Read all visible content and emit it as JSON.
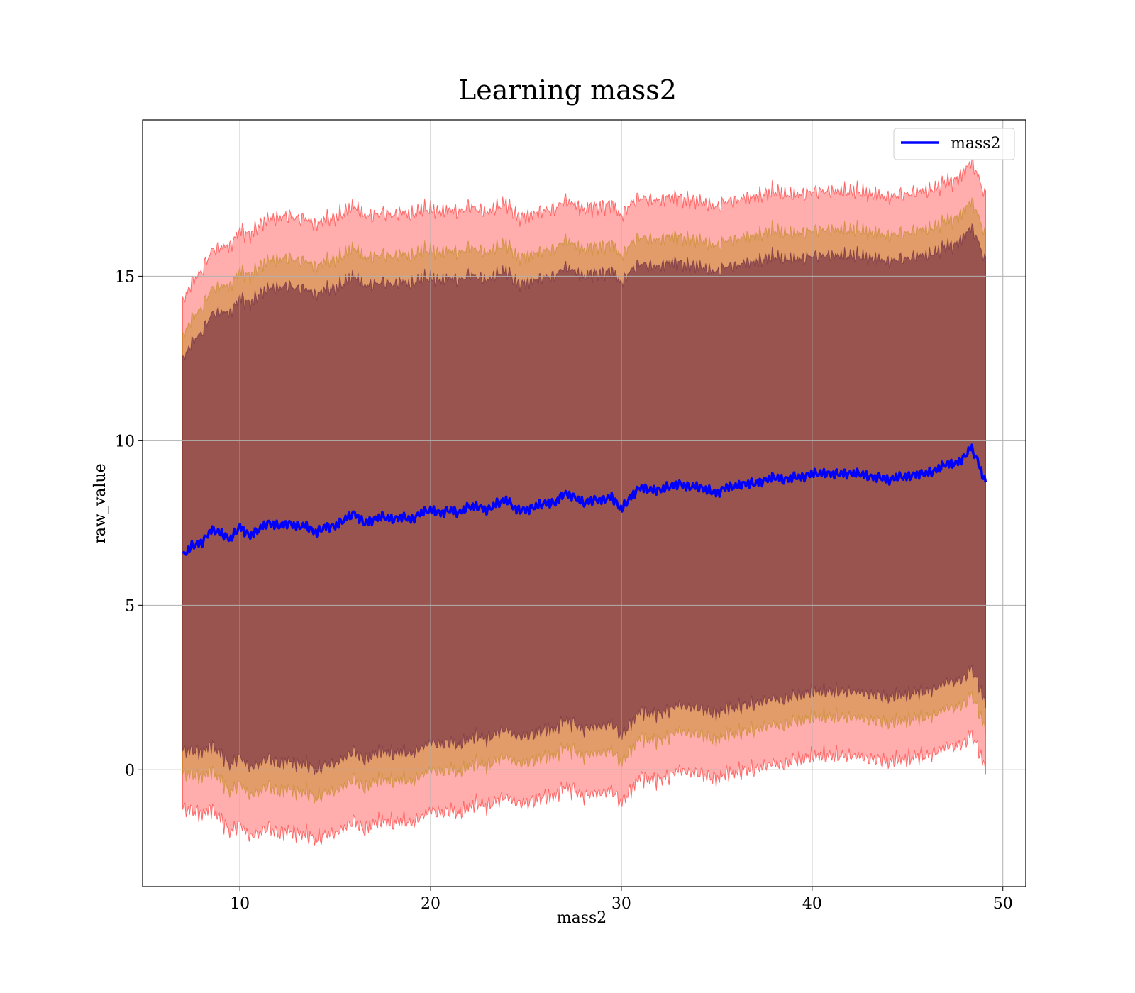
{
  "chart_data": {
    "type": "line",
    "title": "Learning mass2",
    "xlabel": "mass2",
    "ylabel": "raw_value",
    "xlim": [
      4.9,
      51.2
    ],
    "ylim": [
      -3.55,
      19.75
    ],
    "xticks": [
      10,
      20,
      30,
      40,
      50
    ],
    "yticks": [
      0,
      5,
      10,
      15
    ],
    "grid": true,
    "legend": {
      "placement": "upper right",
      "entries": [
        "mass2"
      ]
    },
    "colors": {
      "mean_line": "#0000ff",
      "band_outer": "#ff0000",
      "band_middle": "#b8860b",
      "band_inner": "#5e1a3a",
      "grid": "#b0b0b0"
    },
    "series": [
      {
        "name": "mass2",
        "x": [
          7.0,
          7.5,
          8.0,
          8.5,
          9.0,
          9.5,
          10.0,
          10.5,
          11.0,
          11.5,
          12.0,
          12.5,
          13.0,
          13.5,
          14.0,
          14.5,
          15.0,
          15.5,
          16.0,
          16.5,
          17.0,
          17.5,
          18.0,
          18.5,
          19.0,
          19.5,
          20.0,
          20.5,
          21.0,
          21.5,
          22.0,
          22.5,
          23.0,
          23.5,
          24.0,
          24.5,
          25.0,
          25.5,
          26.0,
          26.5,
          27.0,
          27.5,
          28.0,
          28.5,
          29.0,
          29.5,
          30.0,
          30.5,
          31.0,
          31.5,
          32.0,
          32.5,
          33.0,
          33.5,
          34.0,
          34.5,
          35.0,
          35.5,
          36.0,
          36.5,
          37.0,
          37.5,
          38.0,
          38.5,
          39.0,
          39.5,
          40.0,
          40.5,
          41.0,
          41.5,
          42.0,
          42.5,
          43.0,
          43.5,
          44.0,
          44.5,
          45.0,
          45.5,
          46.0,
          46.5,
          47.0,
          47.5,
          48.0,
          48.3,
          48.6,
          49.1
        ],
        "y": [
          6.5,
          6.8,
          6.9,
          7.3,
          7.2,
          7.0,
          7.4,
          7.1,
          7.3,
          7.5,
          7.4,
          7.5,
          7.4,
          7.4,
          7.2,
          7.4,
          7.4,
          7.6,
          7.8,
          7.5,
          7.6,
          7.7,
          7.6,
          7.7,
          7.6,
          7.8,
          7.9,
          7.8,
          7.9,
          7.8,
          8.0,
          8.0,
          7.9,
          8.1,
          8.2,
          7.9,
          7.9,
          8.0,
          8.1,
          8.1,
          8.4,
          8.3,
          8.1,
          8.2,
          8.2,
          8.3,
          7.9,
          8.3,
          8.6,
          8.5,
          8.5,
          8.6,
          8.7,
          8.6,
          8.6,
          8.5,
          8.4,
          8.6,
          8.6,
          8.7,
          8.7,
          8.8,
          8.9,
          8.8,
          8.9,
          8.9,
          9.0,
          9.0,
          9.0,
          9.0,
          9.0,
          9.0,
          8.9,
          8.9,
          8.8,
          8.9,
          8.9,
          9.0,
          9.0,
          9.1,
          9.3,
          9.3,
          9.5,
          9.8,
          9.5,
          8.7
        ]
      }
    ],
    "bands": {
      "x_start": 7.0,
      "x_end": 49.1,
      "sigma": [
        7.0,
        7.3,
        7.5,
        7.7,
        7.9,
        8.1,
        8.2,
        8.3,
        8.4,
        8.4,
        8.5,
        8.5,
        8.5,
        8.5,
        8.5,
        8.5,
        8.5,
        8.5,
        8.5,
        8.5,
        8.4,
        8.4,
        8.4,
        8.4,
        8.4,
        8.4,
        8.3,
        8.3,
        8.3,
        8.3,
        8.3,
        8.2,
        8.2,
        8.2,
        8.2,
        8.1,
        8.1,
        8.1,
        8.1,
        8.1,
        8.1,
        8.1,
        8.1,
        8.1,
        8.1,
        8.1,
        8.1,
        8.1,
        8.0,
        8.0,
        8.0,
        8.0,
        7.9,
        7.9,
        7.9,
        7.9,
        7.9,
        7.9,
        7.9,
        7.9,
        7.9,
        7.9,
        7.9,
        7.9,
        7.8,
        7.8,
        7.8,
        7.8,
        7.8,
        7.8,
        7.8,
        7.8,
        7.8,
        7.8,
        7.8,
        7.8,
        7.8,
        7.8,
        7.8,
        7.8,
        7.8,
        7.8,
        7.9,
        7.9,
        7.9,
        7.9
      ],
      "levels": [
        {
          "k": 1.1,
          "color": "#ff0000",
          "opacity": 0.32
        },
        {
          "k": 0.95,
          "color": "#b8860b",
          "opacity": 0.42
        },
        {
          "k": 0.85,
          "color": "#5e1a3a",
          "opacity": 0.55
        }
      ]
    }
  }
}
